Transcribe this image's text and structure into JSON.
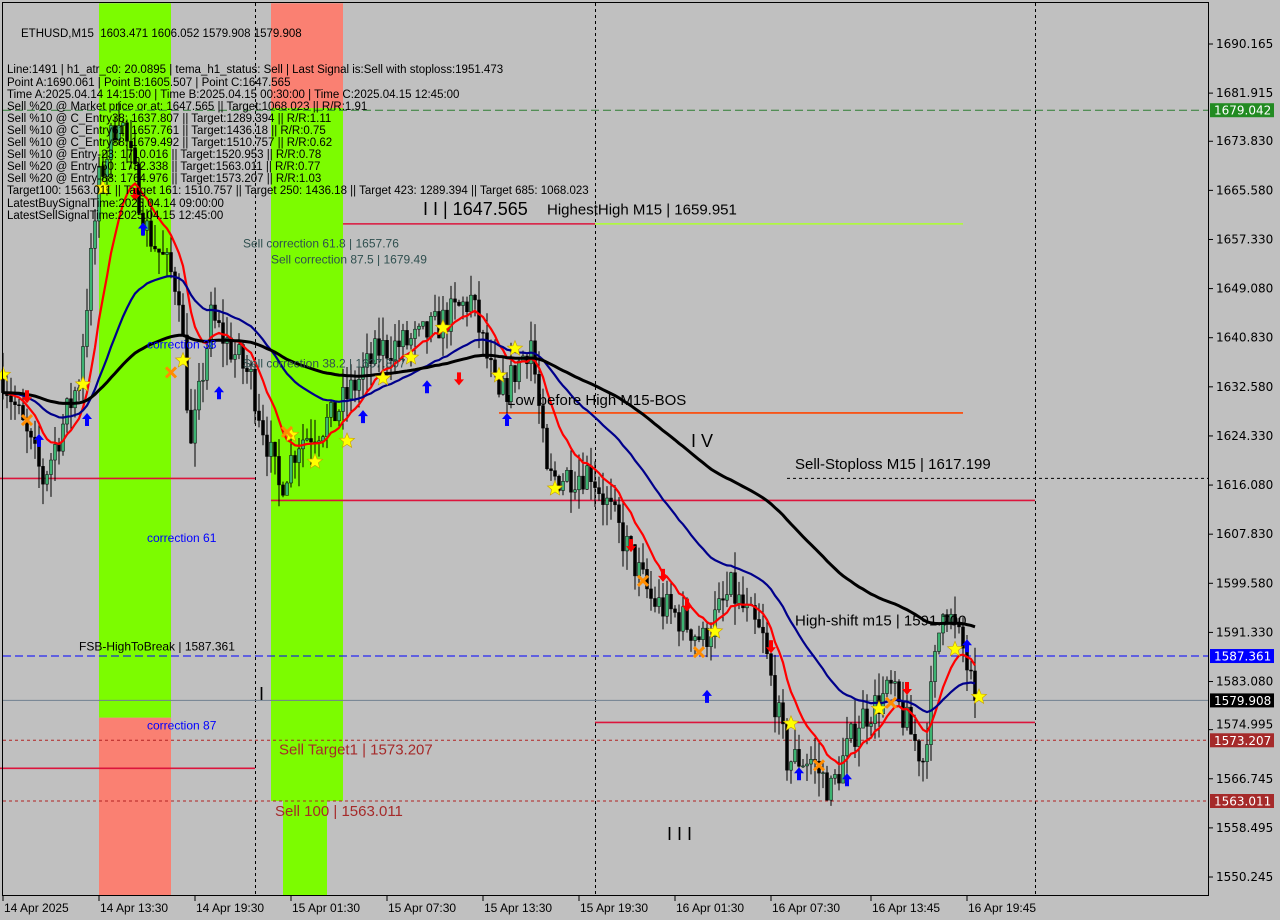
{
  "chart_data": {
    "type": "candlestick",
    "symbol": "ETHUSD,M15",
    "ohlc_header": "1603.471 1606.052 1579.908 1579.908",
    "timeframe_minutes": 15,
    "ylim": [
      1547.0,
      1697.0
    ],
    "y_ticks": [
      "1690.165",
      "1681.915",
      "1673.830",
      "1665.580",
      "1657.330",
      "1649.080",
      "1640.830",
      "1632.580",
      "1624.330",
      "1616.080",
      "1607.830",
      "1599.580",
      "1591.330",
      "1583.080",
      "1574.995",
      "1566.745",
      "1558.495",
      "1550.245"
    ],
    "x_ticks": [
      {
        "label": "14 Apr 2025",
        "time": "2025-04-14 07:30"
      },
      {
        "label": "14 Apr 13:30",
        "time": "2025-04-14 13:30"
      },
      {
        "label": "14 Apr 19:30",
        "time": "2025-04-14 19:30"
      },
      {
        "label": "15 Apr 01:30",
        "time": "2025-04-15 01:30"
      },
      {
        "label": "15 Apr 07:30",
        "time": "2025-04-15 07:30"
      },
      {
        "label": "15 Apr 13:30",
        "time": "2025-04-15 13:30"
      },
      {
        "label": "15 Apr 19:30",
        "time": "2025-04-15 19:30"
      },
      {
        "label": "16 Apr 01:30",
        "time": "2025-04-16 01:30"
      },
      {
        "label": "16 Apr 07:30",
        "time": "2025-04-16 07:30"
      },
      {
        "label": "16 Apr 13:45",
        "time": "2025-04-16 13:45"
      },
      {
        "label": "16 Apr 19:45",
        "time": "2025-04-16 19:45"
      }
    ],
    "price_path": [
      [
        "2025-04-14 07:30",
        1634.6
      ],
      [
        "2025-04-14 10:00",
        1617.0
      ],
      [
        "2025-04-14 12:15",
        1633.7
      ],
      [
        "2025-04-14 13:30",
        1667.0
      ],
      [
        "2025-04-14 14:45",
        1679.0
      ],
      [
        "2025-04-14 16:30",
        1659.0
      ],
      [
        "2025-04-14 18:30",
        1649.0
      ],
      [
        "2025-04-14 19:15",
        1622.0
      ],
      [
        "2025-04-14 20:30",
        1644.0
      ],
      [
        "2025-04-14 23:00",
        1634.0
      ],
      [
        "2025-04-15 00:45",
        1615.5
      ],
      [
        "2025-04-15 02:00",
        1623.7
      ],
      [
        "2025-04-15 04:00",
        1627.0
      ],
      [
        "2025-04-15 07:00",
        1638.8
      ],
      [
        "2025-04-15 09:30",
        1640.5
      ],
      [
        "2025-04-15 12:45",
        1647.2
      ],
      [
        "2025-04-15 14:30",
        1630.0
      ],
      [
        "2025-04-15 16:30",
        1640.5
      ],
      [
        "2025-04-15 17:30",
        1617.0
      ],
      [
        "2025-04-15 20:15",
        1618.6
      ],
      [
        "2025-04-15 22:00",
        1608.5
      ],
      [
        "2025-04-16 00:00",
        1596.8
      ],
      [
        "2025-04-16 02:00",
        1593.4
      ],
      [
        "2025-04-16 03:15",
        1590.0
      ],
      [
        "2025-04-16 05:00",
        1598.4
      ],
      [
        "2025-04-16 07:00",
        1590.0
      ],
      [
        "2025-04-16 08:30",
        1570.0
      ],
      [
        "2025-04-16 10:00",
        1570.0
      ],
      [
        "2025-04-16 11:15",
        1564.8
      ],
      [
        "2025-04-16 13:00",
        1576.6
      ],
      [
        "2025-04-16 15:00",
        1581.6
      ],
      [
        "2025-04-16 17:00",
        1570.0
      ],
      [
        "2025-04-16 18:15",
        1596.8
      ],
      [
        "2025-04-16 19:30",
        1588.4
      ],
      [
        "2025-04-16 20:15",
        1579.908
      ]
    ],
    "moving_averages": [
      {
        "color": "#ff0000",
        "period": 12
      },
      {
        "color": "#00008b",
        "period": 40
      },
      {
        "color": "#000000",
        "period": 110
      }
    ],
    "zones": [
      {
        "color": "#7cfc00",
        "from": "2025-04-14 13:30",
        "to": "2025-04-14 18:00",
        "top": 1697.0,
        "bottom": 1577.0
      },
      {
        "color": "#fa8072",
        "from": "2025-04-14 13:30",
        "to": "2025-04-14 18:00",
        "top": 1577.0,
        "bottom": 1547.0
      },
      {
        "color": "#fa8072",
        "from": "2025-04-15 00:15",
        "to": "2025-04-15 04:45",
        "top": 1697.0,
        "bottom": 1679.4
      },
      {
        "color": "#7cfc00",
        "from": "2025-04-15 00:15",
        "to": "2025-04-15 04:45",
        "top": 1679.4,
        "bottom": 1563.0
      },
      {
        "color": "#7cfc00",
        "from": "2025-04-15 01:00",
        "to": "2025-04-15 03:45",
        "top": 1563.0,
        "bottom": 1547.0
      }
    ],
    "levels": [
      {
        "price": 1679.042,
        "color": "#2e7d32",
        "style": "dashed",
        "from": "start",
        "badge": "1679.042",
        "badge_color": "#228b22"
      },
      {
        "price": 1587.361,
        "color": "#0000ff",
        "style": "dashed",
        "from": "start",
        "badge": "1587.361",
        "badge_color": "#0000ff"
      },
      {
        "price": 1579.908,
        "color": "#708090",
        "style": "solid",
        "from": "start",
        "badge": "1579.908",
        "badge_color": "#000000"
      },
      {
        "price": 1573.207,
        "color": "#b22222",
        "style": "dotted",
        "from": "start",
        "badge": "1573.207",
        "badge_color": "#a52a2a"
      },
      {
        "price": 1563.011,
        "color": "#b22222",
        "style": "dotted",
        "from": "start",
        "badge": "1563.011",
        "badge_color": "#a52a2a"
      },
      {
        "price": 1617.199,
        "color": "#000000",
        "style": "dotted",
        "from": "2025-04-16 08:30"
      }
    ],
    "segments": [
      {
        "price": 1659.951,
        "color": "#dc143c",
        "from": "2025-04-15 04:45",
        "to": "2025-04-15 20:30"
      },
      {
        "price": 1659.951,
        "color": "#adff2f",
        "from": "2025-04-15 20:30",
        "to": "2025-04-16 19:30"
      },
      {
        "price": 1628.2,
        "color": "#ff4500",
        "from": "2025-04-15 14:30",
        "to": "2025-04-16 19:30"
      },
      {
        "price": 1617.199,
        "color": "#dc143c",
        "from": "2025-04-14 07:00",
        "to": "2025-04-14 23:15"
      },
      {
        "price": 1613.5,
        "color": "#dc143c",
        "from": "2025-04-15 00:15",
        "to": "2025-04-15 20:30"
      },
      {
        "price": 1613.5,
        "color": "#dc143c",
        "from": "2025-04-15 20:30",
        "to": "2025-04-17 00:00"
      },
      {
        "price": 1576.2,
        "color": "#dc143c",
        "from": "2025-04-15 20:30",
        "to": "2025-04-17 00:00"
      },
      {
        "price": 1568.5,
        "color": "#dc143c",
        "from": "2025-04-14 07:00",
        "to": "2025-04-14 23:15"
      }
    ],
    "vlines": [
      "2025-04-14 23:15",
      "2025-04-15 20:30",
      "2025-04-17 00:00"
    ],
    "annotations": [
      {
        "text": "HighestHigh   M15 | 1659.951",
        "time": "2025-04-15 17:30",
        "price": 1661.5,
        "color": "#000000",
        "size": 15
      },
      {
        "text": "I I | 1647.565",
        "time": "2025-04-15 09:45",
        "price": 1664.5,
        "color": "#000000",
        "size": 18
      },
      {
        "text": "Sell correction 61.8 | 1657.76",
        "time": "2025-04-14 22:30",
        "price": 1656.0,
        "color": "#2f4f4f",
        "size": 12
      },
      {
        "text": "Sell correction 87.5 | 1679.49",
        "time": "2025-04-15 00:15",
        "price": 1678.0,
        "color": "#2f4f4f",
        "size": 12
      },
      {
        "text": "Sell correction 38.2 | 1637.807",
        "time": "2025-04-14 22:30",
        "price": 1635.8,
        "color": "#2f4f4f",
        "size": 12
      },
      {
        "text": "correction 38",
        "time": "2025-04-14 16:30",
        "price": 1639.0,
        "color": "#0000ff",
        "size": 12
      },
      {
        "text": "correction 61",
        "time": "2025-04-14 16:30",
        "price": 1606.5,
        "color": "#0000ff",
        "size": 12
      },
      {
        "text": "correction 87",
        "time": "2025-04-14 16:30",
        "price": 1575.0,
        "color": "#0000ff",
        "size": 12
      },
      {
        "text": "Low before High   M15-BOS",
        "time": "2025-04-15 15:00",
        "price": 1629.5,
        "color": "#000000",
        "size": 15
      },
      {
        "text": "I V",
        "time": "2025-04-16 02:30",
        "price": 1622.5,
        "color": "#000000",
        "size": 18
      },
      {
        "text": "Sell-Stoploss M15 | 1617.199",
        "time": "2025-04-16 09:00",
        "price": 1618.8,
        "color": "#000000",
        "size": 15
      },
      {
        "text": "High-shift m15 | 1591.700",
        "time": "2025-04-16 09:00",
        "price": 1592.5,
        "color": "#000000",
        "size": 15
      },
      {
        "text": "FSB-HighToBreak | 1587.361",
        "time": "2025-04-14 12:15",
        "price": 1588.3,
        "color": "#000000",
        "size": 12
      },
      {
        "text": "I",
        "time": "2025-04-14 23:30",
        "price": 1580.0,
        "color": "#000000",
        "size": 18
      },
      {
        "text": "Sell Target1 | 1573.207",
        "time": "2025-04-15 00:45",
        "price": 1570.8,
        "color": "#a52a2a",
        "size": 15
      },
      {
        "text": "Sell 100 | 1563.011",
        "time": "2025-04-15 00:30",
        "price": 1560.5,
        "color": "#a52a2a",
        "size": 15
      },
      {
        "text": "I I I",
        "time": "2025-04-16 01:00",
        "price": 1556.5,
        "color": "#000000",
        "size": 18
      }
    ],
    "signals": [
      {
        "type": "star",
        "time": "2025-04-14 07:30",
        "price": 1634.6
      },
      {
        "type": "star",
        "time": "2025-04-14 12:30",
        "price": 1633.0
      },
      {
        "type": "star",
        "time": "2025-04-14 13:45",
        "price": 1666.0
      },
      {
        "type": "star",
        "time": "2025-04-14 18:45",
        "price": 1637.0
      },
      {
        "type": "star",
        "time": "2025-04-15 01:30",
        "price": 1624.5
      },
      {
        "type": "star",
        "time": "2025-04-15 03:00",
        "price": 1620.0
      },
      {
        "type": "star",
        "time": "2025-04-15 05:00",
        "price": 1623.5
      },
      {
        "type": "star",
        "time": "2025-04-15 07:15",
        "price": 1634.0
      },
      {
        "type": "star",
        "time": "2025-04-15 09:00",
        "price": 1637.5
      },
      {
        "type": "star",
        "time": "2025-04-15 11:00",
        "price": 1642.5
      },
      {
        "type": "star",
        "time": "2025-04-15 14:30",
        "price": 1634.5
      },
      {
        "type": "star",
        "time": "2025-04-15 15:30",
        "price": 1639.0
      },
      {
        "type": "star",
        "time": "2025-04-15 18:00",
        "price": 1615.5
      },
      {
        "type": "star",
        "time": "2025-04-16 04:00",
        "price": 1591.5
      },
      {
        "type": "star",
        "time": "2025-04-16 08:45",
        "price": 1576.0
      },
      {
        "type": "star",
        "time": "2025-04-16 14:15",
        "price": 1578.5
      },
      {
        "type": "star",
        "time": "2025-04-16 19:00",
        "price": 1588.5
      },
      {
        "type": "star",
        "time": "2025-04-16 20:30",
        "price": 1580.5
      },
      {
        "type": "down",
        "time": "2025-04-14 09:00",
        "price": 1631.0
      },
      {
        "type": "down",
        "time": "2025-04-14 15:45",
        "price": 1665.0
      },
      {
        "type": "down",
        "time": "2025-04-15 12:00",
        "price": 1634.0
      },
      {
        "type": "down",
        "time": "2025-04-15 22:45",
        "price": 1606.0
      },
      {
        "type": "down",
        "time": "2025-04-16 00:45",
        "price": 1601.0
      },
      {
        "type": "down",
        "time": "2025-04-16 02:15",
        "price": 1596.0
      },
      {
        "type": "down",
        "time": "2025-04-16 07:30",
        "price": 1589.0
      },
      {
        "type": "down",
        "time": "2025-04-16 16:00",
        "price": 1582.0
      },
      {
        "type": "up",
        "time": "2025-04-14 09:45",
        "price": 1623.5
      },
      {
        "type": "up",
        "time": "2025-04-14 12:45",
        "price": 1627.0
      },
      {
        "type": "up",
        "time": "2025-04-14 16:15",
        "price": 1659.0
      },
      {
        "type": "up",
        "time": "2025-04-14 21:00",
        "price": 1631.5
      },
      {
        "type": "up",
        "time": "2025-04-15 06:00",
        "price": 1627.5
      },
      {
        "type": "up",
        "time": "2025-04-15 10:00",
        "price": 1632.5
      },
      {
        "type": "up",
        "time": "2025-04-15 15:00",
        "price": 1627.0
      },
      {
        "type": "up",
        "time": "2025-04-16 03:30",
        "price": 1580.5
      },
      {
        "type": "up",
        "time": "2025-04-16 09:15",
        "price": 1567.5
      },
      {
        "type": "up",
        "time": "2025-04-16 12:15",
        "price": 1566.5
      },
      {
        "type": "up",
        "time": "2025-04-16 19:45",
        "price": 1589.0
      },
      {
        "type": "cross",
        "time": "2025-04-14 09:00",
        "price": 1627.0
      },
      {
        "type": "cross",
        "time": "2025-04-14 18:00",
        "price": 1635.0
      },
      {
        "type": "cross",
        "time": "2025-04-15 01:15",
        "price": 1625.0
      },
      {
        "type": "cross",
        "time": "2025-04-15 23:30",
        "price": 1600.0
      },
      {
        "type": "cross",
        "time": "2025-04-16 03:00",
        "price": 1588.0
      },
      {
        "type": "cross",
        "time": "2025-04-16 10:30",
        "price": 1569.0
      },
      {
        "type": "cross",
        "time": "2025-04-16 15:00",
        "price": 1579.5
      }
    ]
  },
  "info_panel": {
    "title": "ETHUSD,M15  1603.471 1606.052 1579.908 1579.908",
    "lines": [
      "Line:1491 | h1_atr_c0: 20.0895 | tema_h1_status: Sell | Last Signal is:Sell with stoploss:1951.473",
      "Point A:1690.061 | Point B:1605.507 | Point C:1647.565",
      "Time A:2025.04.14 14:15:00 | Time B:2025.04.15 00:30:00 | Time C:2025.04.15 12:45:00",
      "Sell %20 @ Market price or at: 1647.565 || Target:1068.023 || R/R:1.91",
      "Sell %10 @ C_Entry38: 1637.807 || Target:1289.394 || R/R:1.11",
      "Sell %10 @ C_Entry61: 1657.761 || Target:1436.18 || R/R:0.75",
      "Sell %10 @ C_Entry88: 1679.492 || Target:1510.757 || R/R:0.62",
      "Sell %10 @ Entry-23: 1710.016 || Target:1520.953 || R/R:0.78",
      "Sell %20 @ Entry-50: 1732.338 || Target:1563.011 || R/R:0.77",
      "Sell %20 @ Entry-88: 1764.976 || Target:1573.207 || R/R:1.03",
      "Target100: 1563.011 || Target 161: 1510.757 || Target 250: 1436.18 || Target 423: 1289.394 || Target 685: 1068.023",
      "LatestBuySignalTime:2025.04.14 09:00:00",
      "LatestSellSignalTime:2025.04.15 12:45:00"
    ]
  }
}
